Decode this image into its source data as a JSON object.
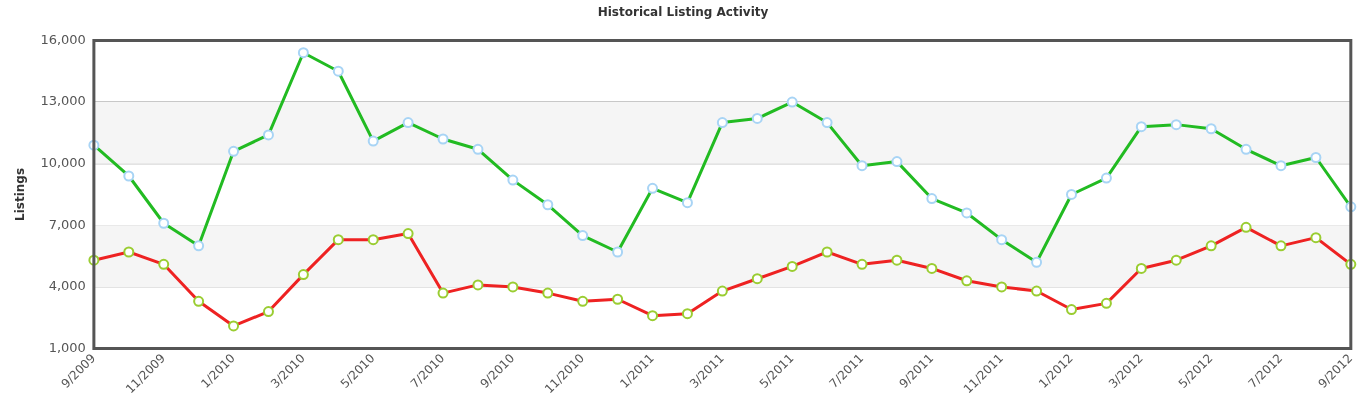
{
  "chart_data": {
    "type": "line",
    "title": "Historical Listing Activity",
    "ylabel": "Listings",
    "categories": [
      "9/2009",
      null,
      "11/2009",
      null,
      "1/2010",
      null,
      "3/2010",
      null,
      "5/2010",
      null,
      "7/2010",
      null,
      "9/2010",
      null,
      "11/2010",
      null,
      "1/2011",
      null,
      "3/2011",
      null,
      "5/2011",
      null,
      "7/2011",
      null,
      "9/2011",
      null,
      "11/2011",
      null,
      "1/2012",
      null,
      "3/2012",
      null,
      "5/2012",
      null,
      "7/2012",
      null,
      "9/2012"
    ],
    "series": [
      {
        "color": "#22bb22",
        "values": [
          10900,
          9400,
          7100,
          6000,
          10600,
          11400,
          15400,
          14500,
          11100,
          12000,
          11200,
          10700,
          9200,
          8000,
          6500,
          5700,
          8800,
          8100,
          12000,
          12200,
          13000,
          12000,
          9900,
          10100,
          8300,
          7600,
          6300,
          5200,
          8500,
          9300,
          11800,
          11900,
          11700,
          10700,
          9900,
          10300,
          7900
        ]
      },
      {
        "color": "#ee2222",
        "values": [
          5300,
          5700,
          5100,
          3300,
          2100,
          2800,
          4600,
          6300,
          6300,
          6600,
          3700,
          4100,
          4000,
          3700,
          3300,
          3400,
          2600,
          2700,
          3800,
          4400,
          5000,
          5700,
          5100,
          5300,
          4900,
          4300,
          4000,
          3800,
          2900,
          3200,
          4900,
          5300,
          6000,
          6900,
          6000,
          6400,
          5100
        ]
      }
    ],
    "ylim": [
      1000,
      16000
    ],
    "yticks": [
      {
        "value": 1000,
        "label": "1,000"
      },
      {
        "value": 4000,
        "label": "4,000"
      },
      {
        "value": 7000,
        "label": "7,000"
      },
      {
        "value": 10000,
        "label": "10,000"
      },
      {
        "value": 13000,
        "label": "13,000"
      },
      {
        "value": 16000,
        "label": "16,000"
      }
    ],
    "grid": "y",
    "legend": false,
    "marker": "circle",
    "line_style": "solid"
  }
}
